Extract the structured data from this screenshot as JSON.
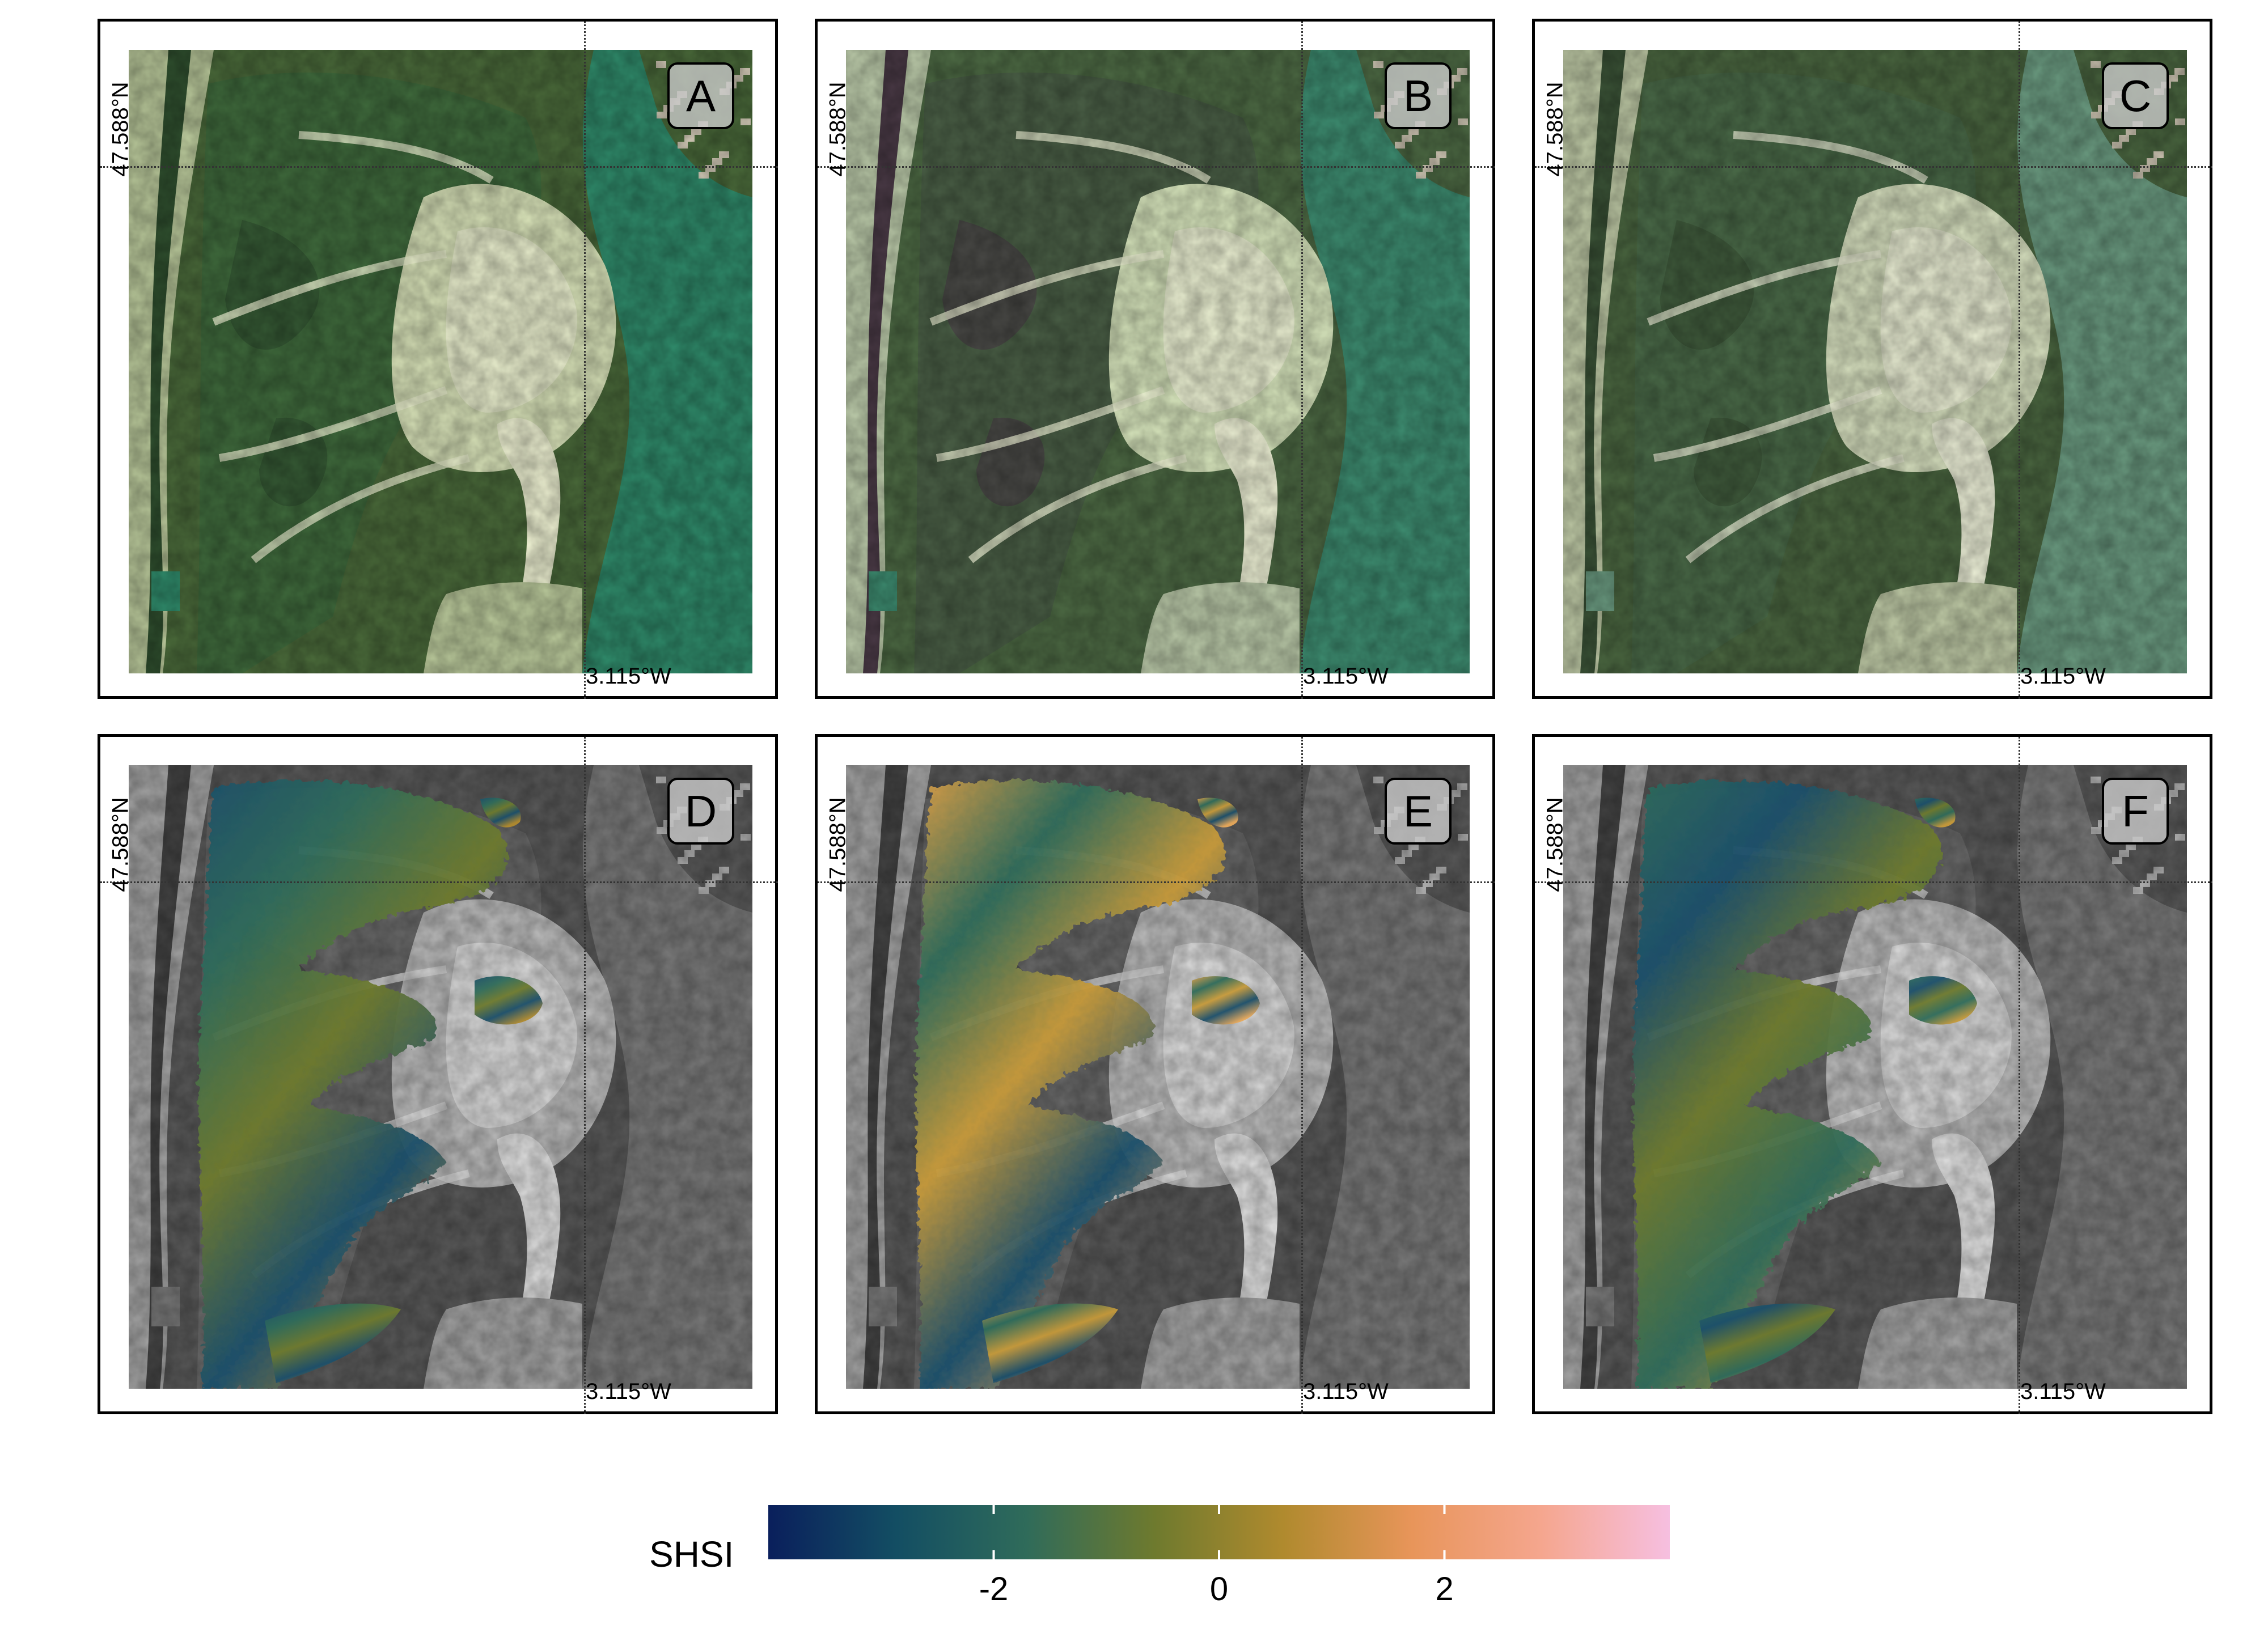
{
  "panels": [
    {
      "letter": "A",
      "lat_label": "47.588°N",
      "lon_label": "3.115°W",
      "kind": "true-color",
      "variant": 0
    },
    {
      "letter": "B",
      "lat_label": "47.588°N",
      "lon_label": "3.115°W",
      "kind": "true-color",
      "variant": 1
    },
    {
      "letter": "C",
      "lat_label": "47.588°N",
      "lon_label": "3.115°W",
      "kind": "true-color",
      "variant": 2
    },
    {
      "letter": "D",
      "lat_label": "47.588°N",
      "lon_label": "3.115°W",
      "kind": "shsi-overlay",
      "variant": 0
    },
    {
      "letter": "E",
      "lat_label": "47.588°N",
      "lon_label": "3.115°W",
      "kind": "shsi-overlay",
      "variant": 1
    },
    {
      "letter": "F",
      "lat_label": "47.588°N",
      "lon_label": "3.115°W",
      "kind": "shsi-overlay",
      "variant": 2
    }
  ],
  "legend": {
    "title": "SHSI",
    "range": [
      -4,
      4
    ],
    "ticks": [
      {
        "value": -2,
        "label": "-2"
      },
      {
        "value": 0,
        "label": "0"
      },
      {
        "value": 2,
        "label": "2"
      }
    ],
    "colors": [
      "#0a1f5c",
      "#134e63",
      "#2f6b5a",
      "#6e7a2e",
      "#b08a2e",
      "#e8955a",
      "#f5a68e",
      "#f6bfe0"
    ]
  }
}
